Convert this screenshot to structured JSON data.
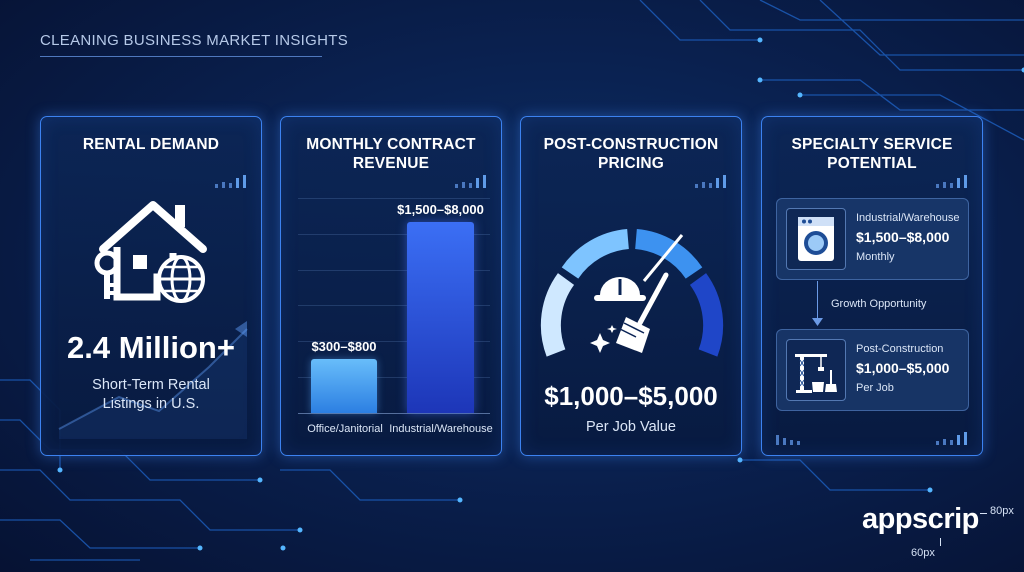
{
  "page": {
    "heading": "CLEANING BUSINESS MARKET INSIGHTS",
    "colors": {
      "accent": "#3c82f0",
      "bar_light": "#5db4f8",
      "bar_dark": "#2a4fe0",
      "background": "#0a2150"
    }
  },
  "cards": [
    {
      "title": "RENTAL DEMAND",
      "icon": "house-key-globe-icon",
      "value": "2.4 Million+",
      "caption": "Short-Term Rental\nListings in U.S."
    },
    {
      "title": "MONTHLY CONTRACT\nREVENUE",
      "chart_data": {
        "type": "bar",
        "categories": [
          "Office/Janitorial",
          "Industrial/Warehouse"
        ],
        "data_labels": [
          "$300–$800",
          "$1,500–$8,000"
        ],
        "ranges": [
          [
            300,
            800
          ],
          [
            1500,
            8000
          ]
        ],
        "ylim": [
          0,
          9000
        ],
        "grid": true
      }
    },
    {
      "title": "POST-CONSTRUCTION\nPRICING",
      "icon": "gauge-hardhat-broom-icon",
      "value": "$1,000–$5,000",
      "caption": "Per Job Value"
    },
    {
      "title": "SPECIALTY SERVICE\nPOTENTIAL",
      "services": [
        {
          "name": "Industrial/Warehouse",
          "price": "$1,500–$8,000",
          "unit": "Monthly",
          "icon": "washing-machine-icon"
        },
        {
          "name": "Post-Construction",
          "price": "$1,000–$5,000",
          "unit": "Per Job",
          "icon": "crane-cleaning-icon"
        }
      ],
      "connector_label": "Growth Opportunity"
    }
  ],
  "logo": {
    "text": "appscrip",
    "width_label": "80px",
    "height_label": "60px"
  }
}
